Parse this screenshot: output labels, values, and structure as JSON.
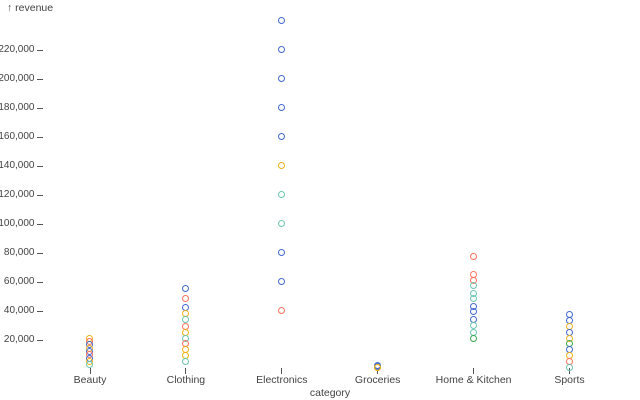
{
  "chart_data": {
    "type": "scatter",
    "variant": "strip-plot",
    "title": "",
    "grid": false,
    "legend": "none",
    "x_axis": {
      "label": "category",
      "categories": [
        "Beauty",
        "Clothing",
        "Electronics",
        "Groceries",
        "Home & Kitchen",
        "Sports"
      ]
    },
    "y_axis": {
      "label": "↑ revenue",
      "tick_interval": 20000,
      "domain": [
        0,
        240000
      ],
      "ticks": [
        {
          "value": 220000,
          "label": "220,000"
        },
        {
          "value": 200000,
          "label": "200,000"
        },
        {
          "value": 180000,
          "label": "180,000"
        },
        {
          "value": 160000,
          "label": "160,000"
        },
        {
          "value": 140000,
          "label": "140,000"
        },
        {
          "value": 120000,
          "label": "120,000"
        },
        {
          "value": 100000,
          "label": "100,000"
        },
        {
          "value": 80000,
          "label": "80,000"
        },
        {
          "value": 60000,
          "label": "60,000"
        },
        {
          "value": 40000,
          "label": "40,000"
        },
        {
          "value": 20000,
          "label": "20,000"
        }
      ]
    },
    "palette": {
      "blue": "#4269d0",
      "orange": "#efb118",
      "red": "#ff725c",
      "teal": "#6cc5b0",
      "green": "#3ca951"
    },
    "points": [
      {
        "category": "Beauty",
        "value": 21000,
        "color": "orange"
      },
      {
        "category": "Beauty",
        "value": 18500,
        "color": "red"
      },
      {
        "category": "Beauty",
        "value": 16500,
        "color": "blue"
      },
      {
        "category": "Beauty",
        "value": 14000,
        "color": "orange"
      },
      {
        "category": "Beauty",
        "value": 12000,
        "color": "blue"
      },
      {
        "category": "Beauty",
        "value": 9500,
        "color": "red"
      },
      {
        "category": "Beauty",
        "value": 7000,
        "color": "blue"
      },
      {
        "category": "Beauty",
        "value": 5000,
        "color": "orange"
      },
      {
        "category": "Beauty",
        "value": 2500,
        "color": "teal"
      },
      {
        "category": "Clothing",
        "value": 55000,
        "color": "blue"
      },
      {
        "category": "Clothing",
        "value": 48000,
        "color": "red"
      },
      {
        "category": "Clothing",
        "value": 42000,
        "color": "blue"
      },
      {
        "category": "Clothing",
        "value": 38000,
        "color": "orange"
      },
      {
        "category": "Clothing",
        "value": 34000,
        "color": "teal"
      },
      {
        "category": "Clothing",
        "value": 29000,
        "color": "red"
      },
      {
        "category": "Clothing",
        "value": 25000,
        "color": "orange"
      },
      {
        "category": "Clothing",
        "value": 21000,
        "color": "teal"
      },
      {
        "category": "Clothing",
        "value": 17000,
        "color": "red"
      },
      {
        "category": "Clothing",
        "value": 13000,
        "color": "orange"
      },
      {
        "category": "Clothing",
        "value": 9000,
        "color": "orange"
      },
      {
        "category": "Clothing",
        "value": 5000,
        "color": "teal"
      },
      {
        "category": "Electronics",
        "value": 240000,
        "color": "blue"
      },
      {
        "category": "Electronics",
        "value": 220000,
        "color": "blue"
      },
      {
        "category": "Electronics",
        "value": 200000,
        "color": "blue"
      },
      {
        "category": "Electronics",
        "value": 180000,
        "color": "blue"
      },
      {
        "category": "Electronics",
        "value": 160000,
        "color": "blue"
      },
      {
        "category": "Electronics",
        "value": 140000,
        "color": "orange"
      },
      {
        "category": "Electronics",
        "value": 120000,
        "color": "teal"
      },
      {
        "category": "Electronics",
        "value": 100000,
        "color": "teal"
      },
      {
        "category": "Electronics",
        "value": 80000,
        "color": "blue"
      },
      {
        "category": "Electronics",
        "value": 60000,
        "color": "blue"
      },
      {
        "category": "Electronics",
        "value": 40000,
        "color": "red"
      },
      {
        "category": "Groceries",
        "value": 1800,
        "color": "blue"
      },
      {
        "category": "Groceries",
        "value": 1400,
        "color": "blue"
      },
      {
        "category": "Groceries",
        "value": 1000,
        "color": "teal"
      },
      {
        "category": "Groceries",
        "value": 700,
        "color": "orange"
      },
      {
        "category": "Groceries",
        "value": 400,
        "color": "orange"
      },
      {
        "category": "Home & Kitchen",
        "value": 77000,
        "color": "red"
      },
      {
        "category": "Home & Kitchen",
        "value": 65000,
        "color": "red"
      },
      {
        "category": "Home & Kitchen",
        "value": 61000,
        "color": "red"
      },
      {
        "category": "Home & Kitchen",
        "value": 57000,
        "color": "teal"
      },
      {
        "category": "Home & Kitchen",
        "value": 52000,
        "color": "teal"
      },
      {
        "category": "Home & Kitchen",
        "value": 48000,
        "color": "teal"
      },
      {
        "category": "Home & Kitchen",
        "value": 43000,
        "color": "blue"
      },
      {
        "category": "Home & Kitchen",
        "value": 39000,
        "color": "blue"
      },
      {
        "category": "Home & Kitchen",
        "value": 34000,
        "color": "blue"
      },
      {
        "category": "Home & Kitchen",
        "value": 30000,
        "color": "teal"
      },
      {
        "category": "Home & Kitchen",
        "value": 25000,
        "color": "teal"
      },
      {
        "category": "Home & Kitchen",
        "value": 21000,
        "color": "green"
      },
      {
        "category": "Sports",
        "value": 37000,
        "color": "blue"
      },
      {
        "category": "Sports",
        "value": 33000,
        "color": "blue"
      },
      {
        "category": "Sports",
        "value": 29000,
        "color": "orange"
      },
      {
        "category": "Sports",
        "value": 25000,
        "color": "blue"
      },
      {
        "category": "Sports",
        "value": 20500,
        "color": "orange"
      },
      {
        "category": "Sports",
        "value": 17000,
        "color": "green"
      },
      {
        "category": "Sports",
        "value": 13000,
        "color": "blue"
      },
      {
        "category": "Sports",
        "value": 9000,
        "color": "orange"
      },
      {
        "category": "Sports",
        "value": 5000,
        "color": "red"
      },
      {
        "category": "Sports",
        "value": 500,
        "color": "teal"
      }
    ]
  }
}
